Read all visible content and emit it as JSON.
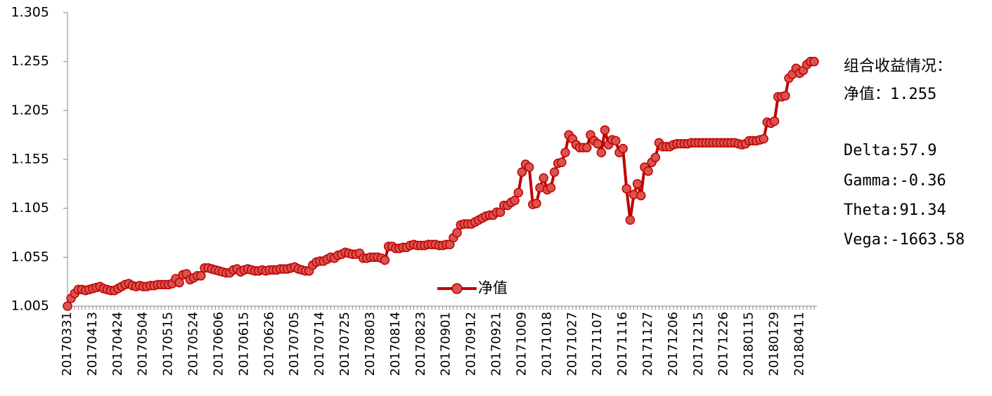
{
  "chart_data": {
    "type": "line",
    "categories": [
      "20170331",
      null,
      null,
      null,
      null,
      null,
      null,
      "20170413",
      null,
      null,
      null,
      null,
      null,
      null,
      "20170424",
      null,
      null,
      null,
      null,
      null,
      null,
      "20170504",
      null,
      null,
      null,
      null,
      null,
      null,
      "20170515",
      null,
      null,
      null,
      null,
      null,
      null,
      "20170524",
      null,
      null,
      null,
      null,
      null,
      null,
      "20170606",
      null,
      null,
      null,
      null,
      null,
      null,
      "20170615",
      null,
      null,
      null,
      null,
      null,
      null,
      "20170626",
      null,
      null,
      null,
      null,
      null,
      null,
      "20170705",
      null,
      null,
      null,
      null,
      null,
      null,
      "20170714",
      null,
      null,
      null,
      null,
      null,
      null,
      "20170725",
      null,
      null,
      null,
      null,
      null,
      null,
      "20170803",
      null,
      null,
      null,
      null,
      null,
      null,
      "20170814",
      null,
      null,
      null,
      null,
      null,
      null,
      "20170823",
      null,
      null,
      null,
      null,
      null,
      null,
      "20170901",
      null,
      null,
      null,
      null,
      null,
      null,
      "20170912",
      null,
      null,
      null,
      null,
      null,
      null,
      "20170921",
      null,
      null,
      null,
      null,
      null,
      null,
      "20171009",
      null,
      null,
      null,
      null,
      null,
      null,
      "20171018",
      null,
      null,
      null,
      null,
      null,
      null,
      "20171027",
      null,
      null,
      null,
      null,
      null,
      null,
      "20171107",
      null,
      null,
      null,
      null,
      null,
      null,
      "20171116",
      null,
      null,
      null,
      null,
      null,
      null,
      "20171127",
      null,
      null,
      null,
      null,
      null,
      null,
      "20171206",
      null,
      null,
      null,
      null,
      null,
      null,
      "20171215",
      null,
      null,
      null,
      null,
      null,
      null,
      "20171226",
      null,
      null,
      null,
      null,
      null,
      null,
      "20180115",
      null,
      null,
      null,
      null,
      null,
      null,
      "20180129",
      null,
      null,
      null,
      null,
      null,
      null,
      "20180411",
      null,
      null,
      null,
      null
    ],
    "series": [
      {
        "name": "净值",
        "color": "#c00000",
        "marker_color": "#d9534f",
        "values": [
          1.005,
          1.013,
          1.018,
          1.022,
          1.022,
          1.021,
          1.022,
          1.023,
          1.024,
          1.025,
          1.023,
          1.022,
          1.021,
          1.021,
          1.023,
          1.025,
          1.027,
          1.028,
          1.026,
          1.025,
          1.026,
          1.025,
          1.025,
          1.026,
          1.026,
          1.027,
          1.027,
          1.027,
          1.027,
          1.028,
          1.033,
          1.029,
          1.037,
          1.038,
          1.032,
          1.034,
          1.036,
          1.036,
          1.044,
          1.044,
          1.043,
          1.042,
          1.041,
          1.04,
          1.039,
          1.039,
          1.042,
          1.043,
          1.04,
          1.042,
          1.043,
          1.042,
          1.041,
          1.041,
          1.042,
          1.041,
          1.042,
          1.042,
          1.042,
          1.043,
          1.043,
          1.043,
          1.044,
          1.045,
          1.043,
          1.042,
          1.041,
          1.041,
          1.047,
          1.05,
          1.051,
          1.051,
          1.053,
          1.055,
          1.054,
          1.057,
          1.058,
          1.06,
          1.059,
          1.058,
          1.058,
          1.059,
          1.054,
          1.054,
          1.055,
          1.055,
          1.055,
          1.054,
          1.052,
          1.066,
          1.066,
          1.064,
          1.064,
          1.065,
          1.065,
          1.067,
          1.068,
          1.067,
          1.067,
          1.067,
          1.068,
          1.068,
          1.068,
          1.067,
          1.067,
          1.068,
          1.068,
          1.075,
          1.08,
          1.088,
          1.089,
          1.089,
          1.089,
          1.091,
          1.093,
          1.095,
          1.097,
          1.098,
          1.098,
          1.101,
          1.101,
          1.108,
          1.108,
          1.111,
          1.113,
          1.121,
          1.142,
          1.15,
          1.147,
          1.109,
          1.11,
          1.126,
          1.136,
          1.124,
          1.126,
          1.142,
          1.151,
          1.152,
          1.162,
          1.18,
          1.176,
          1.17,
          1.167,
          1.167,
          1.167,
          1.18,
          1.174,
          1.171,
          1.162,
          1.185,
          1.17,
          1.175,
          1.174,
          1.162,
          1.166,
          1.125,
          1.093,
          1.119,
          1.13,
          1.118,
          1.147,
          1.143,
          1.152,
          1.157,
          1.172,
          1.168,
          1.168,
          1.168,
          1.17,
          1.171,
          1.171,
          1.171,
          1.171,
          1.172,
          1.172,
          1.172,
          1.172,
          1.172,
          1.172,
          1.172,
          1.172,
          1.172,
          1.172,
          1.172,
          1.172,
          1.172,
          1.171,
          1.17,
          1.171,
          1.174,
          1.174,
          1.174,
          1.175,
          1.176,
          1.193,
          1.192,
          1.194,
          1.219,
          1.219,
          1.22,
          1.238,
          1.242,
          1.248,
          1.243,
          1.246,
          1.252,
          1.255,
          1.255
        ]
      }
    ],
    "ylim": [
      1.005,
      1.305
    ],
    "yticks": [
      1.005,
      1.055,
      1.105,
      1.155,
      1.205,
      1.255,
      1.305
    ],
    "grid": false,
    "legend": "bottom",
    "annotations": [
      "组合收益情况：",
      "净值：1.255",
      "Delta:57.9",
      "Gamma:-0.36",
      "Theta:91.34",
      "Vega:-1663.58"
    ]
  }
}
